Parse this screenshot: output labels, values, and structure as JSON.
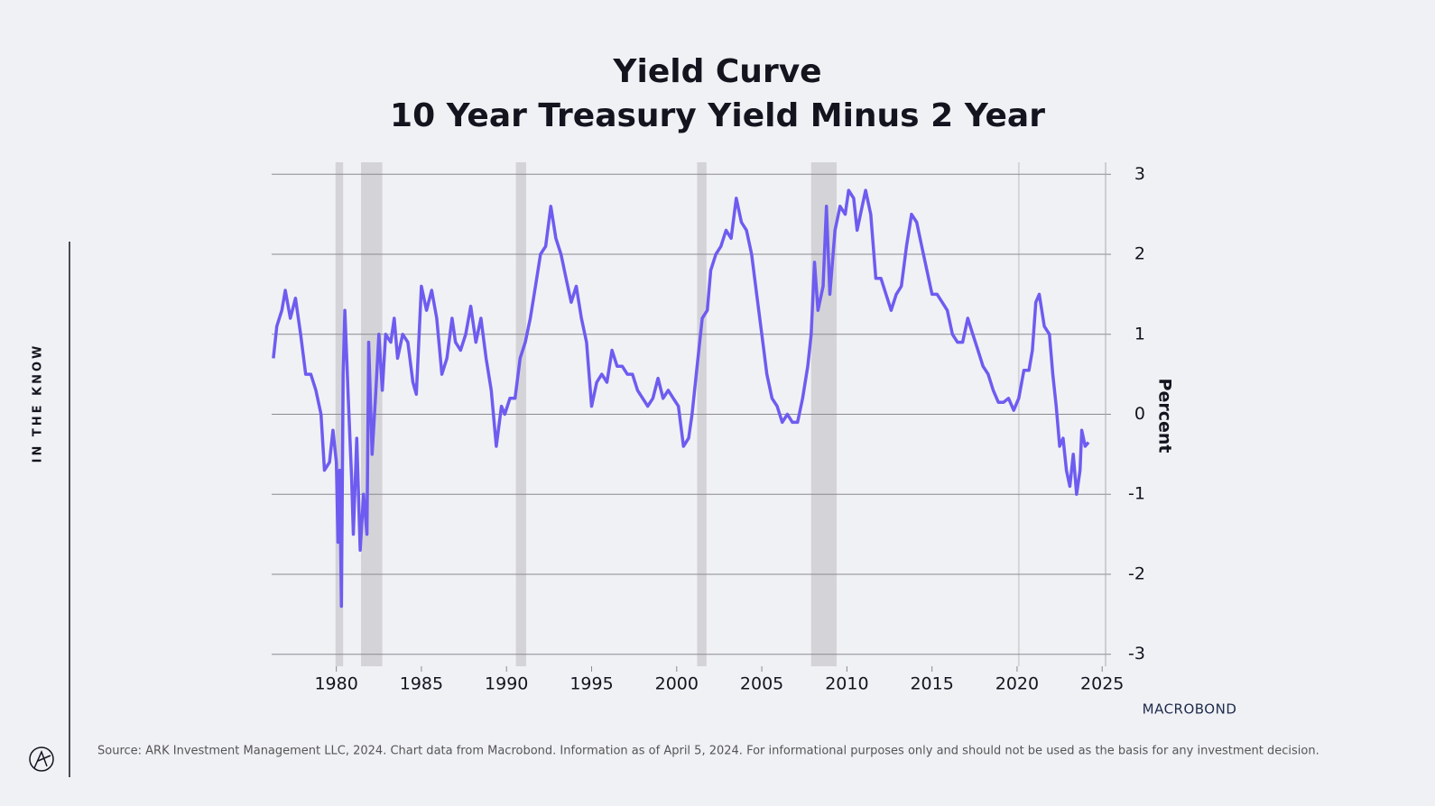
{
  "side_label": "IN THE KNOW",
  "source": "Source: ARK Investment Management LLC, 2024. Chart data from Macrobond. Information as of April 5, 2024. For informational purposes only and should not be used as the basis for any investment decision.",
  "brand": "MACROBOND",
  "chart_data": {
    "type": "line",
    "title": "Yield Curve",
    "subtitle": "10 Year Treasury Yield Minus 2 Year",
    "y_label": "Percent",
    "color": "#6e5cf0",
    "recession_color": "#d4d4d8",
    "grid": true,
    "xlim": [
      1976.2,
      2025.2
    ],
    "ylim": [
      -3.15,
      3.15
    ],
    "xticks": [
      1980,
      1985,
      1990,
      1995,
      2000,
      2005,
      2010,
      2015,
      2020,
      2025
    ],
    "yticks": [
      -3,
      -2,
      -1,
      0,
      1,
      2,
      3
    ],
    "recessions": [
      [
        1979.95,
        1980.4
      ],
      [
        1981.45,
        1982.7
      ],
      [
        1990.55,
        1991.15
      ],
      [
        2001.2,
        2001.75
      ],
      [
        2007.9,
        2009.4
      ],
      [
        2020.05,
        2020.15
      ]
    ],
    "x": [
      1976.3,
      1976.5,
      1976.8,
      1977.0,
      1977.3,
      1977.6,
      1977.9,
      1978.2,
      1978.5,
      1978.8,
      1979.1,
      1979.3,
      1979.6,
      1979.8,
      1980.0,
      1980.1,
      1980.2,
      1980.3,
      1980.4,
      1980.5,
      1980.7,
      1980.9,
      1981.0,
      1981.2,
      1981.4,
      1981.6,
      1981.8,
      1981.9,
      1982.1,
      1982.3,
      1982.5,
      1982.7,
      1982.9,
      1983.2,
      1983.4,
      1983.6,
      1983.9,
      1984.2,
      1984.5,
      1984.7,
      1985.0,
      1985.3,
      1985.6,
      1985.9,
      1986.2,
      1986.5,
      1986.8,
      1987.0,
      1987.3,
      1987.6,
      1987.9,
      1988.2,
      1988.5,
      1988.8,
      1989.1,
      1989.4,
      1989.7,
      1989.9,
      1990.2,
      1990.5,
      1990.8,
      1991.1,
      1991.4,
      1991.7,
      1992.0,
      1992.3,
      1992.6,
      1992.9,
      1993.2,
      1993.5,
      1993.8,
      1994.1,
      1994.4,
      1994.7,
      1995.0,
      1995.3,
      1995.6,
      1995.9,
      1996.2,
      1996.5,
      1996.8,
      1997.1,
      1997.4,
      1997.7,
      1998.0,
      1998.3,
      1998.6,
      1998.9,
      1999.2,
      1999.5,
      1999.8,
      2000.1,
      2000.4,
      2000.7,
      2000.9,
      2001.2,
      2001.5,
      2001.8,
      2002.0,
      2002.3,
      2002.6,
      2002.9,
      2003.2,
      2003.5,
      2003.8,
      2004.1,
      2004.4,
      2004.7,
      2005.0,
      2005.3,
      2005.6,
      2005.9,
      2006.2,
      2006.5,
      2006.8,
      2007.1,
      2007.4,
      2007.7,
      2007.9,
      2008.1,
      2008.3,
      2008.6,
      2008.8,
      2009.0,
      2009.3,
      2009.6,
      2009.9,
      2010.1,
      2010.4,
      2010.6,
      2010.9,
      2011.1,
      2011.4,
      2011.7,
      2012.0,
      2012.3,
      2012.6,
      2012.9,
      2013.2,
      2013.5,
      2013.8,
      2014.1,
      2014.4,
      2014.7,
      2015.0,
      2015.3,
      2015.6,
      2015.9,
      2016.2,
      2016.5,
      2016.8,
      2017.1,
      2017.4,
      2017.7,
      2018.0,
      2018.3,
      2018.6,
      2018.9,
      2019.2,
      2019.5,
      2019.8,
      2020.1,
      2020.4,
      2020.7,
      2020.9,
      2021.1,
      2021.3,
      2021.6,
      2021.9,
      2022.1,
      2022.3,
      2022.5,
      2022.7,
      2022.9,
      2023.1,
      2023.3,
      2023.5,
      2023.7,
      2023.8,
      2024.0,
      2024.2
    ],
    "values": [
      0.7,
      1.1,
      1.3,
      1.55,
      1.2,
      1.45,
      1.0,
      0.5,
      0.5,
      0.3,
      0.0,
      -0.7,
      -0.6,
      -0.2,
      -0.6,
      -1.6,
      -0.7,
      -2.4,
      0.5,
      1.3,
      0.2,
      -0.8,
      -1.5,
      -0.3,
      -1.7,
      -1.0,
      -1.5,
      0.9,
      -0.5,
      0.2,
      1.0,
      0.3,
      1.0,
      0.9,
      1.2,
      0.7,
      1.0,
      0.9,
      0.4,
      0.25,
      1.6,
      1.3,
      1.55,
      1.2,
      0.5,
      0.7,
      1.2,
      0.9,
      0.8,
      1.0,
      1.35,
      0.9,
      1.2,
      0.7,
      0.3,
      -0.4,
      0.1,
      0.0,
      0.2,
      0.2,
      0.7,
      0.9,
      1.2,
      1.6,
      2.0,
      2.1,
      2.6,
      2.2,
      2.0,
      1.7,
      1.4,
      1.6,
      1.2,
      0.9,
      0.1,
      0.4,
      0.5,
      0.4,
      0.8,
      0.6,
      0.6,
      0.5,
      0.5,
      0.3,
      0.2,
      0.1,
      0.2,
      0.45,
      0.2,
      0.3,
      0.2,
      0.1,
      -0.4,
      -0.3,
      0.0,
      0.6,
      1.2,
      1.3,
      1.8,
      2.0,
      2.1,
      2.3,
      2.2,
      2.7,
      2.4,
      2.3,
      2.0,
      1.5,
      1.0,
      0.5,
      0.2,
      0.1,
      -0.1,
      0.0,
      -0.1,
      -0.1,
      0.2,
      0.6,
      1.0,
      1.9,
      1.3,
      1.6,
      2.6,
      1.5,
      2.3,
      2.6,
      2.5,
      2.8,
      2.7,
      2.3,
      2.6,
      2.8,
      2.5,
      1.7,
      1.7,
      1.5,
      1.3,
      1.5,
      1.6,
      2.1,
      2.5,
      2.4,
      2.1,
      1.8,
      1.5,
      1.5,
      1.4,
      1.3,
      1.0,
      0.9,
      0.9,
      1.2,
      1.0,
      0.8,
      0.6,
      0.5,
      0.3,
      0.15,
      0.15,
      0.2,
      0.05,
      0.2,
      0.55,
      0.55,
      0.8,
      1.4,
      1.5,
      1.1,
      1.0,
      0.5,
      0.1,
      -0.4,
      -0.3,
      -0.7,
      -0.9,
      -0.5,
      -1.0,
      -0.7,
      -0.2,
      -0.4,
      -0.35
    ]
  }
}
